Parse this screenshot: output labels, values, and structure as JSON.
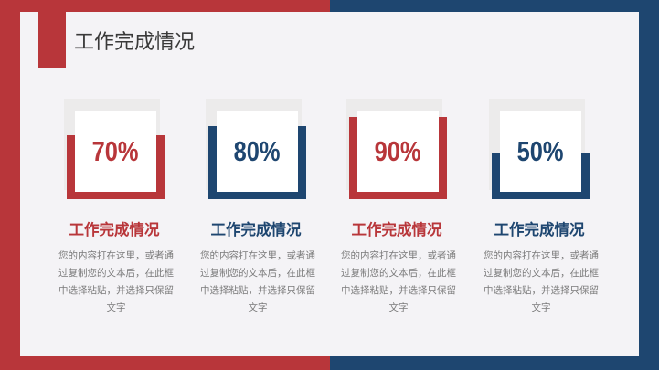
{
  "title": "工作完成情况",
  "colors": {
    "red": "#b8363a",
    "blue": "#1e4670",
    "panel": "#f4f3f6"
  },
  "cards": [
    {
      "percent_label": "70%",
      "percent": 70,
      "color": "#b8363a",
      "heading": "工作完成情况",
      "text": "您的内容打在这里，或者通过复制您的文本后，在此框中选择粘贴，并选择只保留文字"
    },
    {
      "percent_label": "80%",
      "percent": 80,
      "color": "#1e4670",
      "heading": "工作完成情况",
      "text": "您的内容打在这里，或者通过复制您的文本后，在此框中选择粘贴，并选择只保留文字"
    },
    {
      "percent_label": "90%",
      "percent": 90,
      "color": "#b8363a",
      "heading": "工作完成情况",
      "text": "您的内容打在这里，或者通过复制您的文本后，在此框中选择粘贴，并选择只保留文字"
    },
    {
      "percent_label": "50%",
      "percent": 50,
      "color": "#1e4670",
      "heading": "工作完成情况",
      "text": "您的内容打在这里，或者通过复制您的文本后，在此框中选择粘贴，并选择只保留文字"
    }
  ]
}
